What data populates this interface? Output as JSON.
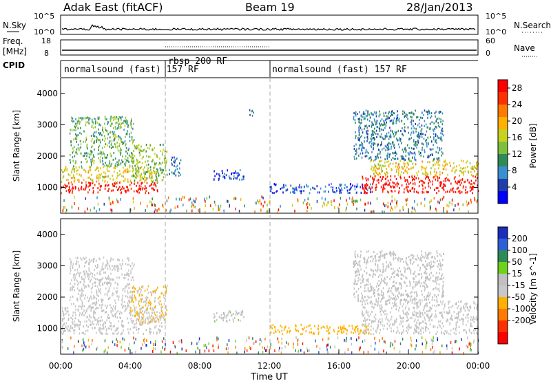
{
  "header": {
    "title": "Adak East (fitACF)",
    "beam": "Beam 19",
    "date": "28/Jan/2013"
  },
  "top_panel": {
    "left_label": "N.Sky",
    "right_label": "N.Search",
    "left_ticks": [
      "10^5",
      "10^0"
    ],
    "right_ticks": [
      "10^5",
      "10^0"
    ]
  },
  "freq_panel": {
    "left_label": "Freq.",
    "left_unit": "[MHz]",
    "right_label": "Nave",
    "left_ticks": [
      "18",
      "8"
    ],
    "right_ticks": [
      "60",
      "0"
    ]
  },
  "cpid": {
    "label": "CPID",
    "segments": [
      {
        "name": "normalsound (fast) 157 RF",
        "start": 0.0,
        "end": 6.0
      },
      {
        "name": "rbsp 200 RF",
        "start": 6.0,
        "end": 12.0
      },
      {
        "name": "normalsound (fast) 157 RF",
        "start": 12.0,
        "end": 24.0
      }
    ]
  },
  "colors": {
    "dashed_divider": "#aaaaaa"
  },
  "chart_data": [
    {
      "type": "heatmap",
      "title": "",
      "xlabel": "Time UT",
      "ylabel": "Slant Range [km]",
      "xlim": [
        0,
        24
      ],
      "ylim": [
        180,
        4500
      ],
      "x_ticks": [
        "00:00",
        "04:00",
        "08:00",
        "12:00",
        "16:00",
        "20:00",
        "00:00"
      ],
      "y_ticks": [
        "1000",
        "2000",
        "3000",
        "4000"
      ],
      "colorbar": {
        "label": "Power [dB]",
        "ticks": [
          "4",
          "8",
          "12",
          "16",
          "20",
          "24",
          "28"
        ],
        "colors": [
          "#0000ff",
          "#1f3fa8",
          "#3a8fd0",
          "#2e8b57",
          "#7fbf3f",
          "#c8d21e",
          "#ffb000",
          "#ff7a00",
          "#ff3000",
          "#ff0000"
        ]
      },
      "regions": [
        {
          "t0": 0.0,
          "t1": 5.7,
          "r0": 850,
          "r1": 1200,
          "level": 28
        },
        {
          "t0": 0.0,
          "t1": 5.5,
          "r0": 1200,
          "r1": 1700,
          "level": 18
        },
        {
          "t0": 0.5,
          "t1": 4.2,
          "r0": 1700,
          "r1": 3300,
          "level": 12
        },
        {
          "t0": 4.0,
          "t1": 6.1,
          "r0": 1200,
          "r1": 2400,
          "level": 14
        },
        {
          "t0": 6.2,
          "t1": 6.9,
          "r0": 1400,
          "r1": 2000,
          "level": 6
        },
        {
          "t0": 8.7,
          "t1": 10.6,
          "r0": 1250,
          "r1": 1600,
          "level": 5
        },
        {
          "t0": 10.8,
          "t1": 11.2,
          "r0": 3300,
          "r1": 3500,
          "level": 6
        },
        {
          "t0": 12.0,
          "t1": 17.8,
          "r0": 850,
          "r1": 1150,
          "level": 5
        },
        {
          "t0": 17.3,
          "t1": 24.0,
          "r0": 850,
          "r1": 1400,
          "level": 28
        },
        {
          "t0": 17.8,
          "t1": 24.0,
          "r0": 1400,
          "r1": 1900,
          "level": 18
        },
        {
          "t0": 16.8,
          "t1": 22.0,
          "r0": 1900,
          "r1": 3500,
          "level": 8
        }
      ]
    },
    {
      "type": "heatmap",
      "title": "",
      "xlabel": "Time UT",
      "ylabel": "Slant Range [km]",
      "xlim": [
        0,
        24
      ],
      "ylim": [
        180,
        4500
      ],
      "x_ticks": [
        "00:00",
        "04:00",
        "08:00",
        "12:00",
        "16:00",
        "20:00",
        "00:00"
      ],
      "y_ticks": [
        "1000",
        "2000",
        "3000",
        "4000"
      ],
      "colorbar": {
        "label": "Velocity [m s^-1]",
        "ticks": [
          "200",
          "100",
          "50",
          "15",
          "-15",
          "-50",
          "-100",
          "-200"
        ],
        "colors": [
          "#1a2dbd",
          "#2f5fd6",
          "#2e8b57",
          "#6fd21a",
          "#c0c0c0",
          "#c8c8c8",
          "#ffb000",
          "#ff7a00",
          "#ff3000",
          "#ff0000"
        ]
      },
      "regions": [
        {
          "t0": 0.0,
          "t1": 5.8,
          "r0": 850,
          "r1": 1700,
          "level": 0
        },
        {
          "t0": 0.5,
          "t1": 4.2,
          "r0": 1700,
          "r1": 3300,
          "level": -10
        },
        {
          "t0": 4.0,
          "t1": 6.1,
          "r0": 1200,
          "r1": 2400,
          "level": -40
        },
        {
          "t0": 8.7,
          "t1": 10.6,
          "r0": 1250,
          "r1": 1600,
          "level": 30
        },
        {
          "t0": 12.0,
          "t1": 17.8,
          "r0": 850,
          "r1": 1150,
          "level": -60
        },
        {
          "t0": 17.3,
          "t1": 24.0,
          "r0": 850,
          "r1": 1900,
          "level": 0
        },
        {
          "t0": 16.8,
          "t1": 22.0,
          "r0": 1900,
          "r1": 3500,
          "level": 20
        }
      ]
    }
  ]
}
